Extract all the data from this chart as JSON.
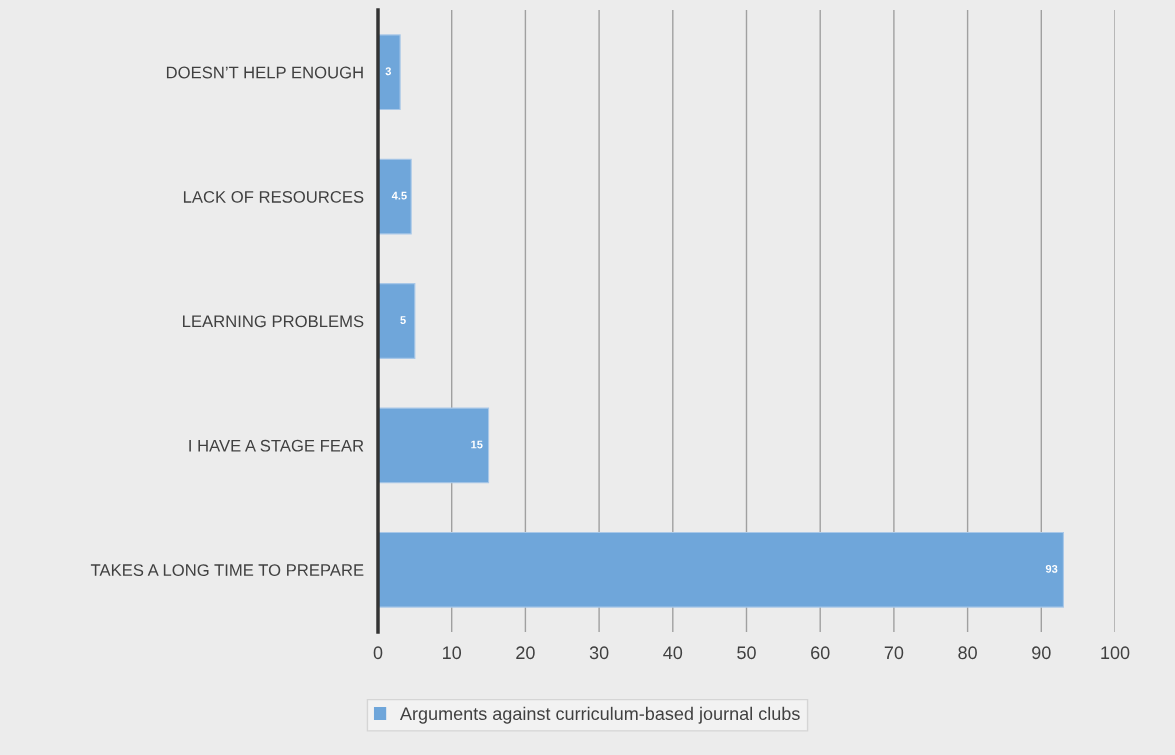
{
  "chart_data": {
    "type": "bar",
    "orientation": "horizontal",
    "categories": [
      "DOESN’T HELP ENOUGH",
      "LACK OF RESOURCES",
      "LEARNING PROBLEMS",
      "I HAVE A STAGE FEAR",
      "TAKES A LONG TIME TO PREPARE"
    ],
    "series": [
      {
        "name": "Arguments against curriculum-based journal clubs",
        "color": "#6fa6da",
        "values": [
          3,
          4.5,
          5,
          15,
          93
        ]
      }
    ],
    "xlim": [
      0,
      100
    ],
    "xticks": [
      0,
      10,
      20,
      30,
      40,
      50,
      60,
      70,
      80,
      90,
      100
    ],
    "grid": "x",
    "legend": "bottom",
    "data_labels": true
  }
}
